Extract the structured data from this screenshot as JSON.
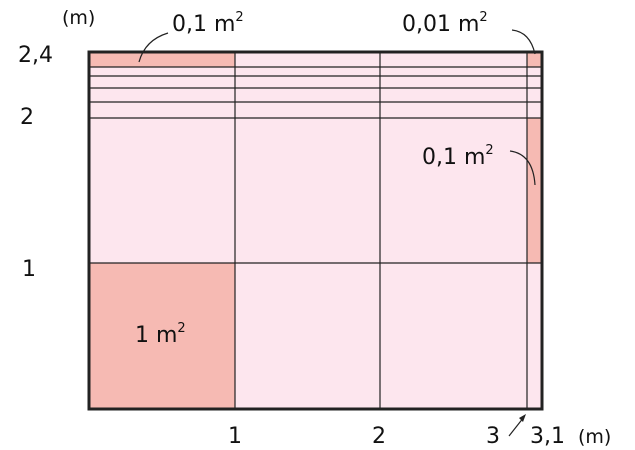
{
  "colors": {
    "background": "#ffffff",
    "region_light": "#fde6ee",
    "region_highlight": "#f6bab3",
    "line": "#222222"
  },
  "axes": {
    "unit_y": "(m)",
    "unit_x": "(m)",
    "y_ticks": [
      "2,4",
      "2",
      "1"
    ],
    "x_ticks": [
      "1",
      "2",
      "3",
      "3,1"
    ]
  },
  "labels": {
    "top_left_area": {
      "value": "0,1 m",
      "sup": "2"
    },
    "top_right_area": {
      "value": "0,01 m",
      "sup": "2"
    },
    "right_strip_area": {
      "value": "0,1 m",
      "sup": "2"
    },
    "unit_square_area": {
      "value": "1 m",
      "sup": "2"
    }
  }
}
